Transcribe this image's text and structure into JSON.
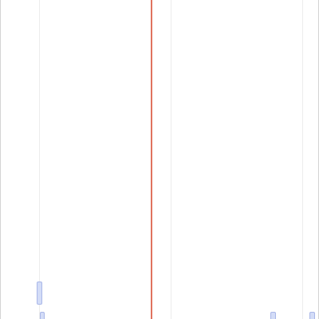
{
  "timeline": {
    "colors": {
      "background": "#ffffff",
      "gridline": "#ececec",
      "current_time_marker": "#e0735f",
      "event_fill": "#d3dcf7",
      "event_border": "#a9b7e8"
    }
  }
}
